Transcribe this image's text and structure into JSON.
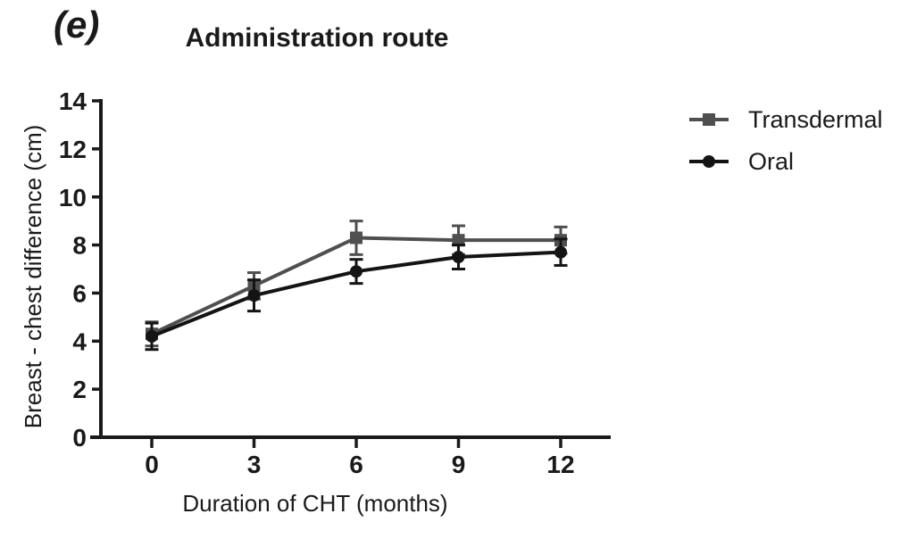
{
  "panel_label": "(e)",
  "chart_data": {
    "type": "line",
    "title": "Administration route",
    "xlabel": "Duration of CHT (months)",
    "ylabel": "Breast - chest difference (cm)",
    "x": [
      0,
      3,
      6,
      9,
      12
    ],
    "ylim": [
      0,
      14
    ],
    "yticks": [
      0,
      2,
      4,
      6,
      8,
      10,
      12,
      14
    ],
    "grid": false,
    "legend_position": "right",
    "error_bars": true,
    "axis_color": "#1a1a1a",
    "series": [
      {
        "name": "Transdermal",
        "marker": "square",
        "color": "#4f4f4f",
        "values": [
          4.3,
          6.3,
          8.3,
          8.2,
          8.2
        ],
        "errors": [
          0.5,
          0.55,
          0.7,
          0.6,
          0.55
        ]
      },
      {
        "name": "Oral",
        "marker": "circle",
        "color": "#141414",
        "values": [
          4.2,
          5.9,
          6.9,
          7.5,
          7.7
        ],
        "errors": [
          0.55,
          0.65,
          0.5,
          0.5,
          0.55
        ]
      }
    ]
  }
}
